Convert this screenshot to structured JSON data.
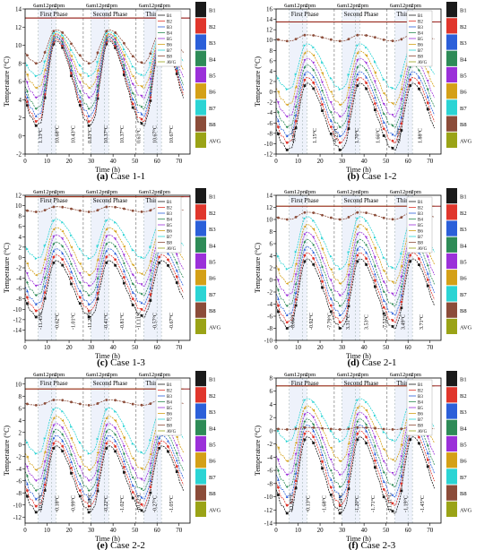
{
  "series_names": [
    "B1",
    "B2",
    "B3",
    "B4",
    "B5",
    "B6",
    "B7",
    "B8",
    "AVG"
  ],
  "series_colors": [
    "#1a1a1a",
    "#e0362c",
    "#2b5fd9",
    "#2e8b57",
    "#9b30d9",
    "#d4a017",
    "#2bd4d4",
    "#8b4c39",
    "#9aa316"
  ],
  "markers": [
    "square",
    "circle",
    "triangle",
    "diamond",
    "triangle-down",
    "triangle-left",
    "triangle-right",
    "hexagon",
    "none"
  ],
  "time_labels": [
    "6am",
    "12pm",
    "2pm"
  ],
  "phases": [
    "First Phase",
    "Second Phase",
    "Third Phase"
  ],
  "xlabel": "Time (h)",
  "ylabel": "Temperature (°C)",
  "chart_data": [
    {
      "type": "line",
      "caption_letter": "(a)",
      "caption_text": "Case 1-1",
      "xlim": [
        0,
        75
      ],
      "ylim": [
        -2,
        14
      ],
      "x_ticks": [
        0,
        10,
        20,
        30,
        40,
        50,
        60,
        70
      ],
      "y_ticks": [
        -2,
        0,
        2,
        4,
        6,
        8,
        10,
        12,
        14
      ],
      "series": [
        {
          "name": "B1",
          "min": 1.13,
          "max": 10.5
        },
        {
          "name": "B2",
          "min": 1.6,
          "max": 10.7
        },
        {
          "name": "B3",
          "min": 2.2,
          "max": 10.9
        },
        {
          "name": "B4",
          "min": 3.0,
          "max": 11.0
        },
        {
          "name": "B5",
          "min": 4.2,
          "max": 11.2
        },
        {
          "name": "B6",
          "min": 5.3,
          "max": 11.3
        },
        {
          "name": "B7",
          "min": 6.6,
          "max": 11.5
        },
        {
          "name": "B8",
          "min": 8.0,
          "max": 11.7
        },
        {
          "name": "AVG",
          "min": 13.0,
          "max": 13.0
        }
      ],
      "annotations": [
        "1.13°C",
        "10.68°C",
        "10.43°C",
        "0.83°C",
        "10.37°C",
        "10.37°C",
        "0.61°C",
        "10.67°C",
        "10.67°C"
      ]
    },
    {
      "type": "line",
      "caption_letter": "(b)",
      "caption_text": "Case 1-2",
      "xlim": [
        0,
        75
      ],
      "ylim": [
        -12,
        16
      ],
      "x_ticks": [
        0,
        10,
        20,
        30,
        40,
        50,
        60,
        70
      ],
      "y_ticks": [
        -12,
        -10,
        -8,
        -6,
        -4,
        -2,
        0,
        2,
        4,
        6,
        8,
        10,
        12,
        14,
        16
      ],
      "series": [
        {
          "name": "B1",
          "min": -11.2,
          "max": 1.7
        },
        {
          "name": "B2",
          "min": -9.8,
          "max": 2.8
        },
        {
          "name": "B3",
          "min": -8.5,
          "max": 3.9
        },
        {
          "name": "B4",
          "min": -6.8,
          "max": 5.2
        },
        {
          "name": "B5",
          "min": -4.8,
          "max": 6.5
        },
        {
          "name": "B6",
          "min": -2.5,
          "max": 7.9
        },
        {
          "name": "B7",
          "min": 0.5,
          "max": 9.3
        },
        {
          "name": "B8",
          "min": 9.8,
          "max": 11.0
        },
        {
          "name": "AVG",
          "min": 13.5,
          "max": 13.5
        }
      ],
      "annotations": [
        "-9.47°C",
        "1.15°C",
        "-9.25°C",
        "1.70°C",
        "1.66°C",
        "-9.12°C",
        "1.88°C"
      ]
    },
    {
      "type": "line",
      "caption_letter": "(c)",
      "caption_text": "Case 1-3",
      "xlim": [
        0,
        75
      ],
      "ylim": [
        -16,
        12
      ],
      "x_ticks": [
        0,
        10,
        20,
        30,
        40,
        50,
        60,
        70
      ],
      "y_ticks": [
        -14,
        -12,
        -10,
        -8,
        -6,
        -4,
        -2,
        0,
        2,
        4,
        6,
        8,
        10,
        12
      ],
      "series": [
        {
          "name": "B1",
          "min": -11.5,
          "max": -0.6
        },
        {
          "name": "B2",
          "min": -10.3,
          "max": 0.5
        },
        {
          "name": "B3",
          "min": -9.0,
          "max": 1.7
        },
        {
          "name": "B4",
          "min": -7.3,
          "max": 3.0
        },
        {
          "name": "B5",
          "min": -5.5,
          "max": 4.4
        },
        {
          "name": "B6",
          "min": -3.4,
          "max": 5.8
        },
        {
          "name": "B7",
          "min": -0.2,
          "max": 7.4
        },
        {
          "name": "B8",
          "min": 8.8,
          "max": 9.8
        },
        {
          "name": "AVG",
          "min": 11.7,
          "max": 11.7
        }
      ],
      "annotations": [
        "-11.45°C",
        "-0.62°C",
        "-1.01°C",
        "-11.28°C",
        "-0.41°C",
        "-0.81°C",
        "-11.11°C",
        "-0.57°C",
        "-0.67°C"
      ]
    },
    {
      "type": "line",
      "caption_letter": "(d)",
      "caption_text": "Case 2-1",
      "xlim": [
        0,
        75
      ],
      "ylim": [
        -10,
        14
      ],
      "x_ticks": [
        0,
        10,
        20,
        30,
        40,
        50,
        60,
        70
      ],
      "y_ticks": [
        -10,
        -8,
        -6,
        -4,
        -2,
        0,
        2,
        4,
        6,
        8,
        10,
        12,
        14
      ],
      "series": [
        {
          "name": "B1",
          "min": -8.0,
          "max": 3.5
        },
        {
          "name": "B2",
          "min": -7.0,
          "max": 4.5
        },
        {
          "name": "B3",
          "min": -5.8,
          "max": 5.5
        },
        {
          "name": "B4",
          "min": -4.3,
          "max": 6.7
        },
        {
          "name": "B5",
          "min": -2.6,
          "max": 7.9
        },
        {
          "name": "B6",
          "min": -0.6,
          "max": 9.2
        },
        {
          "name": "B7",
          "min": 1.8,
          "max": 10.5
        },
        {
          "name": "B8",
          "min": 10.0,
          "max": 11.2
        },
        {
          "name": "AVG",
          "min": 12.2,
          "max": 12.2
        }
      ],
      "annotations": [
        "-8.06°C",
        "-0.92°C",
        "-7.79°C",
        "3.31°C",
        "3.53°C",
        "-7.52°C",
        "3.49°C",
        "3.71°C"
      ]
    },
    {
      "type": "line",
      "caption_letter": "(e)",
      "caption_text": "Case 2-2",
      "xlim": [
        0,
        75
      ],
      "ylim": [
        -13,
        11
      ],
      "x_ticks": [
        0,
        10,
        20,
        30,
        40,
        50,
        60,
        70
      ],
      "y_ticks": [
        -12,
        -10,
        -8,
        -6,
        -4,
        -2,
        0,
        2,
        4,
        6,
        8,
        10
      ],
      "series": [
        {
          "name": "B1",
          "min": -11.2,
          "max": -0.2
        },
        {
          "name": "B2",
          "min": -10.2,
          "max": 0.6
        },
        {
          "name": "B3",
          "min": -9.0,
          "max": 1.5
        },
        {
          "name": "B4",
          "min": -7.6,
          "max": 2.5
        },
        {
          "name": "B5",
          "min": -6.0,
          "max": 3.5
        },
        {
          "name": "B6",
          "min": -4.2,
          "max": 4.7
        },
        {
          "name": "B7",
          "min": -1.5,
          "max": 6.1
        },
        {
          "name": "B8",
          "min": 6.5,
          "max": 7.4
        },
        {
          "name": "AVG",
          "min": 9.2,
          "max": 9.2
        }
      ],
      "annotations": [
        "-10.17°C",
        "-0.18°C",
        "-0.99°C",
        "-11.28°C",
        "-0.22°C",
        "-1.02°C",
        "-10.52°C",
        "-0.27°C",
        "-1.05°C"
      ]
    },
    {
      "type": "line",
      "caption_letter": "(f)",
      "caption_text": "Case 2-3",
      "xlim": [
        0,
        75
      ],
      "ylim": [
        -14,
        8
      ],
      "x_ticks": [
        0,
        10,
        20,
        30,
        40,
        50,
        60,
        70
      ],
      "y_ticks": [
        -14,
        -12,
        -10,
        -8,
        -6,
        -4,
        -2,
        0,
        2,
        4,
        6,
        8
      ],
      "series": [
        {
          "name": "B1",
          "min": -12.5,
          "max": -0.9
        },
        {
          "name": "B2",
          "min": -11.3,
          "max": 0.0
        },
        {
          "name": "B3",
          "min": -10.0,
          "max": 0.9
        },
        {
          "name": "B4",
          "min": -8.5,
          "max": 1.8
        },
        {
          "name": "B5",
          "min": -6.7,
          "max": 2.8
        },
        {
          "name": "B6",
          "min": -4.6,
          "max": 3.8
        },
        {
          "name": "B7",
          "min": -1.6,
          "max": 4.9
        },
        {
          "name": "B8",
          "min": 0.2,
          "max": 0.5
        },
        {
          "name": "AVG",
          "min": 6.8,
          "max": 6.8
        }
      ],
      "annotations": [
        "-11.88°C",
        "-0.13°C",
        "-1.68°C",
        "-11.54°C",
        "-1.20°C",
        "-1.71°C",
        "-11.11°C",
        "-1.19°C",
        "-1.45°C"
      ]
    }
  ]
}
